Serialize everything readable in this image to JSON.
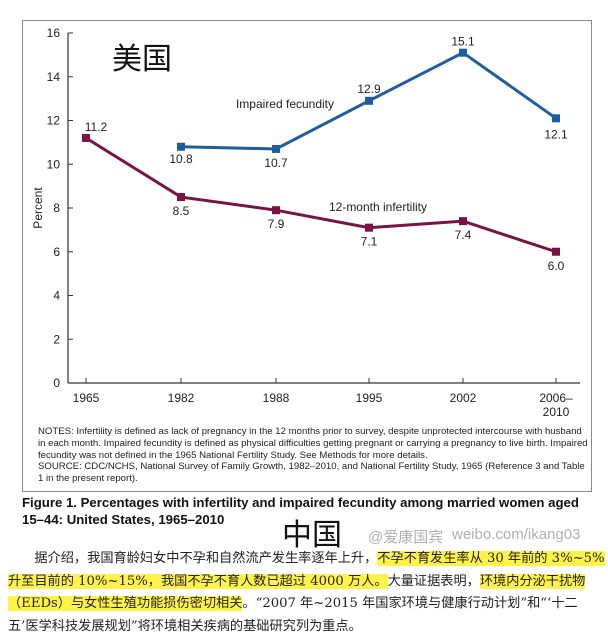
{
  "chart_data": {
    "type": "line",
    "title_overlay": "美国",
    "ylabel": "Percent",
    "ylim": [
      0,
      16
    ],
    "yticks": [
      "0",
      "2",
      "4",
      "6",
      "8",
      "10",
      "12",
      "14",
      "16"
    ],
    "categories": [
      "1965",
      "1982",
      "1988",
      "1995",
      "2002",
      "2006–2010"
    ],
    "series": [
      {
        "name": "Impaired fecundity",
        "color": "#1f5e9e",
        "values": [
          null,
          10.8,
          10.7,
          12.9,
          15.1,
          12.1
        ],
        "labels": [
          "",
          "10.8",
          "10.7",
          "12.9",
          "15.1",
          "12.1"
        ]
      },
      {
        "name": "12-month infertility",
        "color": "#7b1245",
        "values": [
          11.2,
          8.5,
          7.9,
          7.1,
          7.4,
          6.0
        ],
        "labels": [
          "11.2",
          "8.5",
          "7.9",
          "7.1",
          "7.4",
          "6.0"
        ]
      }
    ]
  },
  "notes": "NOTES: Infertility is  defined as lack of pregnancy in the 12 months prior to survey, despite unprotected intercourse with husband in each month. Impaired fecundity is defined as physical difficulties getting pregnant or carrying a pregnancy to live birth. Impaired fecundity was not defined in the 1965 National Fertility Study. See Methods for more details.",
  "source": "SOURCE: CDC/NCHS, National Survey of Family Growth, 1982–2010, and National Fertility Study, 1965 (Reference 3 and Table 1 in the present report).",
  "caption": "Figure 1. Percentages with infertility and impaired fecundity among married women aged 15–44: United States, 1965–2010",
  "china_title": "中国",
  "paragraph": {
    "p1": "据介绍，我国育龄妇女中不孕和自然流产发生率逐年上升，",
    "h1": "不孕不育发生率从 30 年前的 3%~5%升至目前的 10%~15%，我国不孕不育人数已超过 4000 万人。",
    "p2": "大量证据表明，",
    "h2": "环境内分泌干扰物（EEDs）与女性生殖功能损伤密切相关",
    "p3": "。“2007 年~2015 年国家环境与健康行动计划”和“‘十二五’医学科技发展规划”将环境相关疾病的基础研究列为重点。"
  },
  "watermark": {
    "handle": "@爱康国宾",
    "url": "weibo.com/ikang03"
  }
}
